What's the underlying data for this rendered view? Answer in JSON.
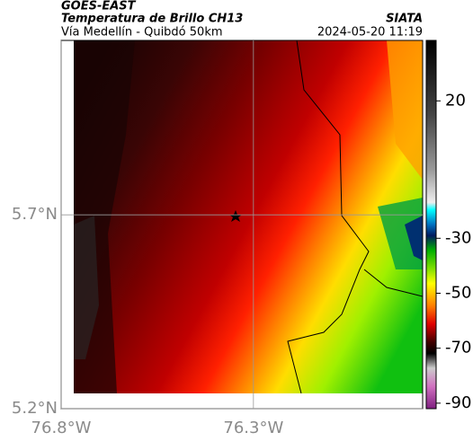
{
  "header": {
    "title": "GOES-EAST",
    "subtitle": "Temperatura de Brillo CH13",
    "route": "Vía Medellín - Quibdó 50km",
    "source": "SIATA",
    "timestamp": "2024-05-20 11:19"
  },
  "map": {
    "xlim": [
      -76.8,
      -75.86
    ],
    "ylim": [
      5.2,
      6.15
    ],
    "xticks": [
      {
        "value": -76.8,
        "label": "76.8°W"
      },
      {
        "value": -76.3,
        "label": "76.3°W"
      }
    ],
    "yticks": [
      {
        "value": 5.2,
        "label": "5.2°N"
      },
      {
        "value": 5.7,
        "label": "5.7°N"
      }
    ],
    "grid": true
  },
  "colorbar": {
    "lim": [
      -92,
      42
    ],
    "ticks": [
      20,
      -30,
      -50,
      -70,
      -90
    ]
  }
}
